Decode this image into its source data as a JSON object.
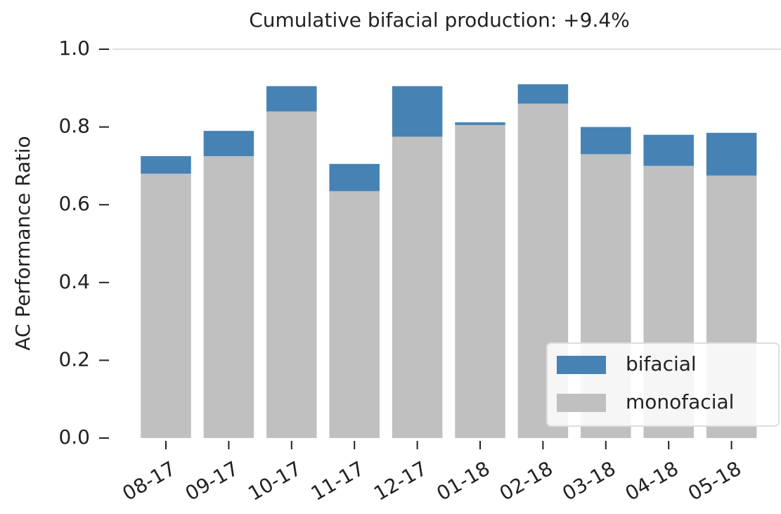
{
  "chart_data": {
    "type": "stacked_bar",
    "title": "Cumulative bifacial production:  +9.4%",
    "y_label": "AC Performance Ratio",
    "categories": [
      "08-17",
      "09-17",
      "10-17",
      "11-17",
      "12-17",
      "01-18",
      "02-18",
      "03-18",
      "04-18",
      "05-18"
    ],
    "series": [
      {
        "name": "bifacial",
        "color": "#4682b4",
        "values": [
          0.045,
          0.065,
          0.065,
          0.07,
          0.13,
          0.007,
          0.05,
          0.07,
          0.08,
          0.11
        ]
      },
      {
        "name": "monofacial",
        "color": "#c0c0c0",
        "values": [
          0.68,
          0.725,
          0.84,
          0.635,
          0.775,
          0.805,
          0.86,
          0.73,
          0.7,
          0.675
        ]
      }
    ],
    "ylim": [
      0,
      1.0
    ],
    "yticks": [
      {
        "value": 0,
        "label": "0.0"
      },
      {
        "value": 0.2,
        "label": "0.2"
      },
      {
        "value": 0.4,
        "label": "0.4"
      },
      {
        "value": 0.6,
        "label": "0.6"
      },
      {
        "value": 0.8,
        "label": "0.8"
      },
      {
        "value": 1.0,
        "label": "1.0"
      }
    ],
    "legend": "lower right"
  }
}
